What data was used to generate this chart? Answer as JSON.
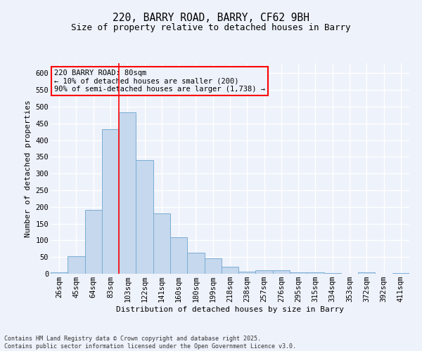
{
  "title1": "220, BARRY ROAD, BARRY, CF62 9BH",
  "title2": "Size of property relative to detached houses in Barry",
  "xlabel": "Distribution of detached houses by size in Barry",
  "ylabel": "Number of detached properties",
  "categories": [
    "26sqm",
    "45sqm",
    "64sqm",
    "83sqm",
    "103sqm",
    "122sqm",
    "141sqm",
    "160sqm",
    "180sqm",
    "199sqm",
    "218sqm",
    "238sqm",
    "257sqm",
    "276sqm",
    "295sqm",
    "315sqm",
    "334sqm",
    "353sqm",
    "372sqm",
    "392sqm",
    "411sqm"
  ],
  "values": [
    5,
    52,
    192,
    432,
    482,
    340,
    180,
    110,
    62,
    47,
    22,
    7,
    10,
    10,
    5,
    5,
    2,
    1,
    5,
    1,
    2
  ],
  "bar_color": "#c5d8ed",
  "bar_edge_color": "#7aadd4",
  "vline_x": 3.5,
  "vline_color": "red",
  "annotation_title": "220 BARRY ROAD: 80sqm",
  "annotation_line1": "← 10% of detached houses are smaller (200)",
  "annotation_line2": "90% of semi-detached houses are larger (1,738) →",
  "annotation_box_color": "red",
  "ylim": [
    0,
    630
  ],
  "yticks": [
    0,
    50,
    100,
    150,
    200,
    250,
    300,
    350,
    400,
    450,
    500,
    550,
    600
  ],
  "footnote": "Contains HM Land Registry data © Crown copyright and database right 2025.\nContains public sector information licensed under the Open Government Licence v3.0.",
  "background_color": "#eef2fb",
  "grid_color": "#ffffff",
  "title_fontsize": 10.5,
  "subtitle_fontsize": 9,
  "axis_label_fontsize": 8,
  "tick_fontsize": 7.5,
  "annotation_fontsize": 7.5
}
